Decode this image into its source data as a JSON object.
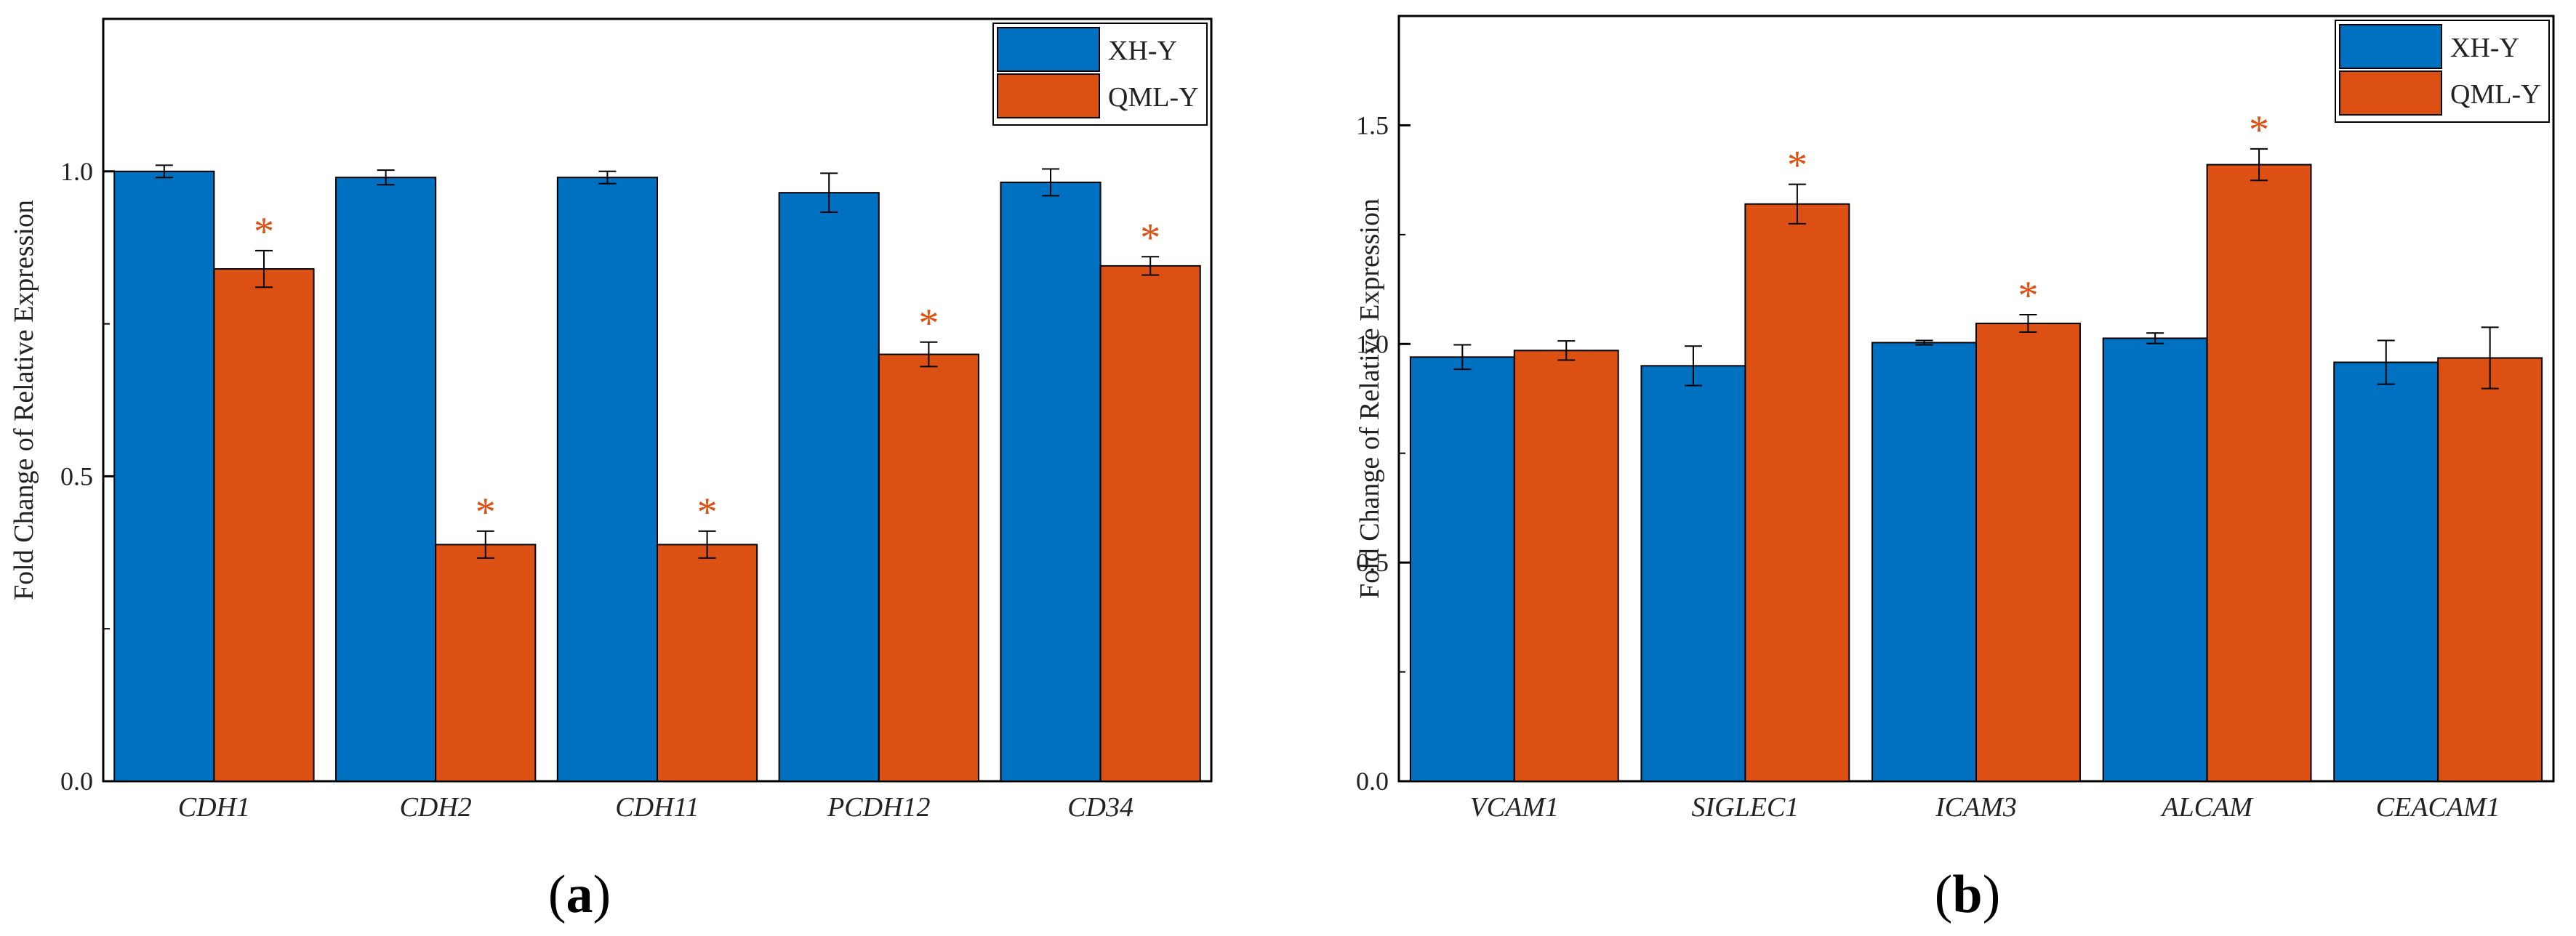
{
  "colors": {
    "series1": "#0070C0",
    "series2": "#DC5014",
    "star": "#DC5014"
  },
  "chart_data": [
    {
      "type": "bar",
      "panel_label": "a",
      "ylabel": "Fold Change of Relative Expression",
      "ylim": [
        0,
        1.25
      ],
      "ticks": [
        0.0,
        0.5,
        1.0
      ],
      "tick_labels": [
        "0.0",
        "0.5",
        "1.0"
      ],
      "categories": [
        "CDH1",
        "CDH2",
        "CDH11",
        "PCDH12",
        "CD34"
      ],
      "series": [
        {
          "name": "XH-Y",
          "values": [
            1.0,
            0.99,
            0.99,
            0.965,
            0.982
          ],
          "errors": [
            0.01,
            0.012,
            0.01,
            0.032,
            0.022
          ]
        },
        {
          "name": "QML-Y",
          "values": [
            0.84,
            0.388,
            0.388,
            0.7,
            0.845
          ],
          "errors": [
            0.03,
            0.022,
            0.022,
            0.02,
            0.015
          ]
        }
      ],
      "significant": [
        false,
        true
      ],
      "star_label": "*"
    },
    {
      "type": "bar",
      "panel_label": "b",
      "ylabel": "Fold Change of Relative Expression",
      "ylim": [
        0,
        1.75
      ],
      "ticks": [
        0.0,
        0.5,
        1.0,
        1.5
      ],
      "tick_labels": [
        "0.0",
        "0.5",
        "1.0",
        "1.5"
      ],
      "categories": [
        "VCAM1",
        "SIGLEC1",
        "ICAM3",
        "ALCAM",
        "CEACAM1"
      ],
      "series": [
        {
          "name": "XH-Y",
          "values": [
            0.97,
            0.95,
            1.003,
            1.013,
            0.958
          ],
          "errors": [
            0.028,
            0.045,
            0.005,
            0.012,
            0.05
          ]
        },
        {
          "name": "QML-Y",
          "values": [
            0.985,
            1.32,
            1.047,
            1.41,
            0.968
          ],
          "errors": [
            0.022,
            0.045,
            0.02,
            0.036,
            0.07
          ]
        }
      ],
      "significant_per_category": [
        false,
        true,
        true,
        true,
        false
      ],
      "star_label": "*"
    }
  ]
}
